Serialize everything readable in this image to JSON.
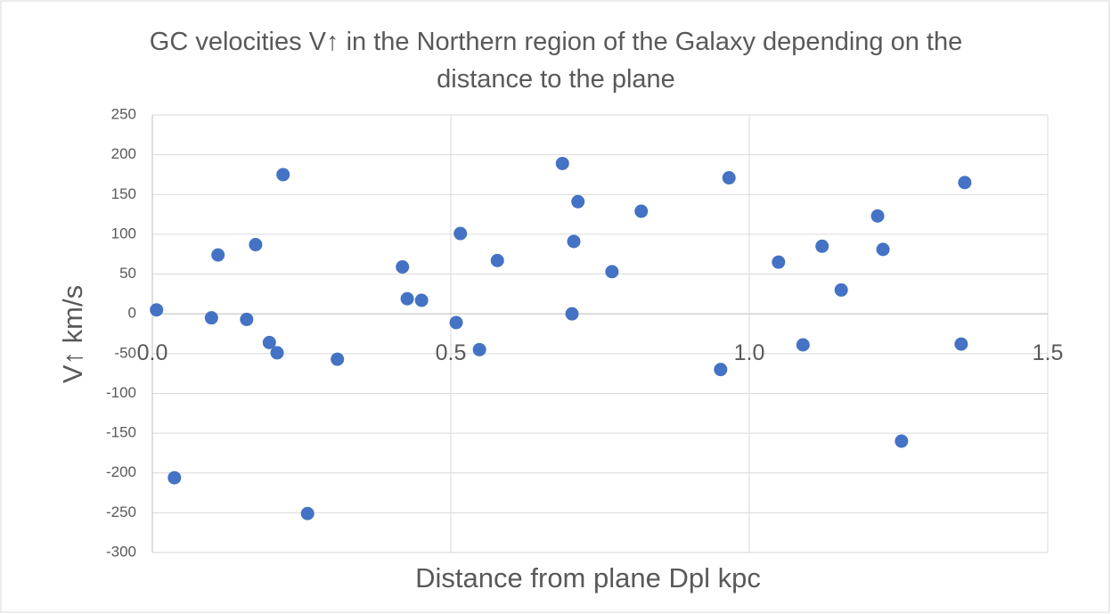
{
  "chart_data": {
    "type": "scatter",
    "title": "GC velocities V↑ in the Northern region of the Galaxy depending on the distance to the plane",
    "x_label": "Distance from plane Dpl kpc",
    "y_label": "V↑ km/s",
    "color": "#4472c4",
    "grid": true,
    "xlim": [
      0,
      1.5
    ],
    "ylim": [
      -300,
      250
    ],
    "xticks": [
      {
        "value": 0,
        "label": "0.0"
      },
      0.5,
      {
        "value": 1,
        "label": "1.0"
      },
      1.5
    ],
    "yticks": [
      250,
      200,
      150,
      100,
      50,
      0,
      -50,
      -100,
      -150,
      -200,
      -250,
      -300
    ],
    "x": [
      0.007,
      0.037,
      0.099,
      0.11,
      0.158,
      0.173,
      0.196,
      0.209,
      0.219,
      0.26,
      0.31,
      0.419,
      0.427,
      0.451,
      0.509,
      0.516,
      0.548,
      0.578,
      0.687,
      0.703,
      0.706,
      0.713,
      0.77,
      0.819,
      0.952,
      0.966,
      1.049,
      1.09,
      1.122,
      1.154,
      1.215,
      1.224,
      1.255,
      1.355,
      1.361
    ],
    "values": [
      5,
      -206,
      -5,
      74,
      -7,
      87,
      -36,
      -49,
      175,
      -251,
      -57,
      59,
      19,
      17,
      -11,
      101,
      -45,
      67,
      189,
      0,
      91,
      141,
      53,
      129,
      -70,
      171,
      65,
      -39,
      85,
      30,
      123,
      81,
      -160,
      -38,
      165
    ]
  }
}
